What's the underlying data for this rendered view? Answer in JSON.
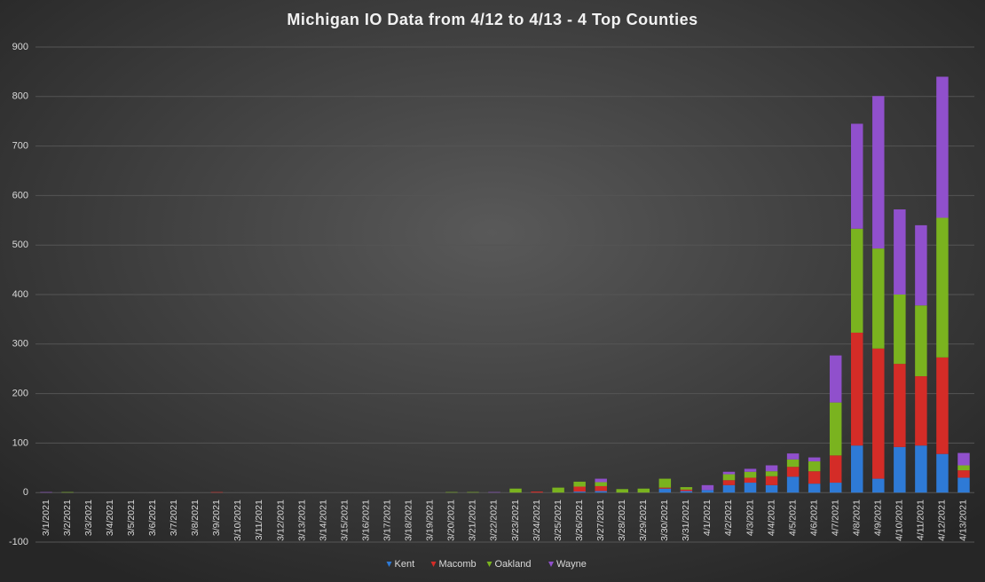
{
  "chart_data": {
    "type": "bar",
    "stacked": true,
    "title": "Michigan  IO Data from 4/12 to 4/13 - 4 Top Counties",
    "categories": [
      "3/1/2021",
      "3/2/2021",
      "3/3/2021",
      "3/4/2021",
      "3/5/2021",
      "3/6/2021",
      "3/7/2021",
      "3/8/2021",
      "3/9/2021",
      "3/10/2021",
      "3/11/2021",
      "3/12/2021",
      "3/13/2021",
      "3/14/2021",
      "3/15/2021",
      "3/16/2021",
      "3/17/2021",
      "3/18/2021",
      "3/19/2021",
      "3/20/2021",
      "3/21/2021",
      "3/22/2021",
      "3/23/2021",
      "3/24/2021",
      "3/25/2021",
      "3/26/2021",
      "3/27/2021",
      "3/28/2021",
      "3/29/2021",
      "3/30/2021",
      "3/31/2021",
      "4/1/2021",
      "4/2/2021",
      "4/3/2021",
      "4/4/2021",
      "4/5/2021",
      "4/6/2021",
      "4/7/2021",
      "4/8/2021",
      "4/9/2021",
      "4/10/2021",
      "4/11/2021",
      "4/12/2021",
      "4/13/2021"
    ],
    "series": [
      {
        "name": "Kent",
        "color": "#2e7ad6",
        "values": [
          0,
          0,
          0,
          0,
          0,
          0,
          0,
          0,
          0,
          0,
          0,
          0,
          0,
          0,
          0,
          0,
          0,
          0,
          0,
          0,
          0,
          0,
          0,
          0,
          0,
          2,
          3,
          0,
          0,
          8,
          3,
          5,
          15,
          20,
          15,
          32,
          18,
          20,
          95,
          28,
          92,
          95,
          78,
          30
        ]
      },
      {
        "name": "Macomb",
        "color": "#d42c27",
        "values": [
          0,
          0,
          0,
          0,
          0,
          0,
          0,
          0,
          1,
          0,
          0,
          0,
          0,
          0,
          0,
          0,
          0,
          0,
          0,
          0,
          0,
          0,
          0,
          2,
          0,
          10,
          10,
          0,
          0,
          2,
          3,
          0,
          10,
          10,
          18,
          20,
          25,
          55,
          228,
          263,
          168,
          140,
          195,
          15
        ]
      },
      {
        "name": "Oakland",
        "color": "#7ab31f",
        "values": [
          0,
          1,
          0,
          0,
          0,
          0,
          0,
          0,
          0,
          0,
          0,
          0,
          0,
          0,
          0,
          0,
          0,
          0,
          0,
          1,
          1,
          0,
          8,
          0,
          10,
          10,
          8,
          7,
          8,
          18,
          5,
          0,
          12,
          12,
          10,
          15,
          20,
          107,
          210,
          202,
          140,
          143,
          282,
          10
        ]
      },
      {
        "name": "Wayne",
        "color": "#9050cc",
        "values": [
          1,
          0,
          0,
          0,
          0,
          0,
          0,
          0,
          0,
          0,
          0,
          0,
          0,
          0,
          0,
          0,
          0,
          0,
          0,
          0,
          0,
          1,
          0,
          0,
          0,
          0,
          7,
          0,
          0,
          0,
          0,
          10,
          5,
          6,
          12,
          12,
          8,
          95,
          212,
          308,
          172,
          162,
          285,
          25
        ]
      }
    ],
    "ylim": [
      -100,
      900
    ],
    "yticks": [
      -100,
      0,
      100,
      200,
      300,
      400,
      500,
      600,
      700,
      800,
      900
    ],
    "grid": true,
    "legend": "bottom"
  }
}
